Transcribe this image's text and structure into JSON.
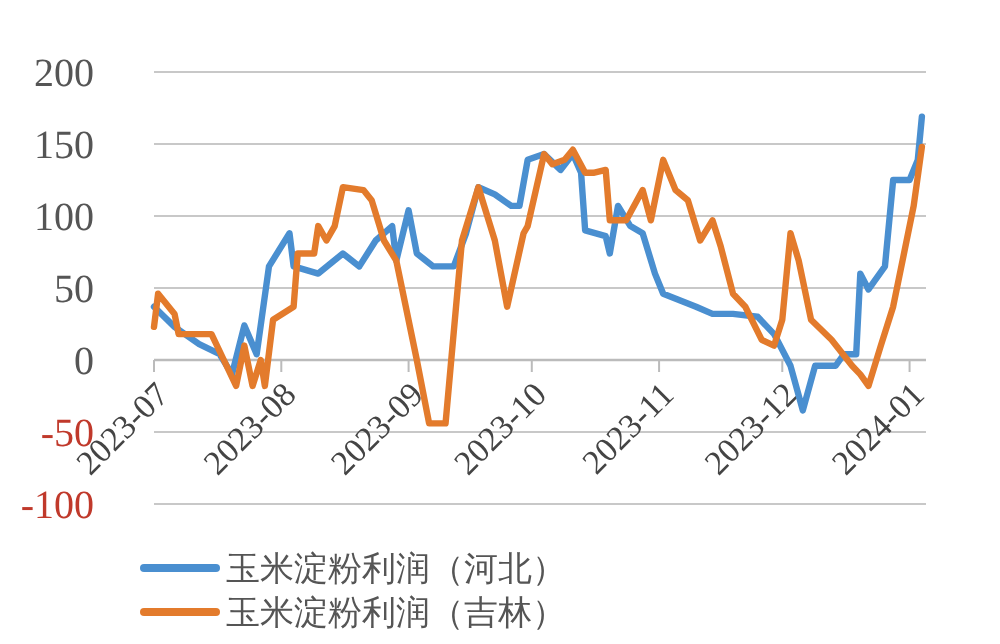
{
  "chart_data": {
    "type": "line",
    "xlim": [
      "2023-07-01",
      "2024-01-05"
    ],
    "xticks": [
      "2023-07",
      "2023-08",
      "2023-09",
      "2023-10",
      "2023-11",
      "2023-12",
      "2024-01"
    ],
    "ylim": [
      -100,
      200
    ],
    "yticks": [
      -100,
      -50,
      0,
      50,
      100,
      150,
      200
    ],
    "grid": "y",
    "legend": "bottom",
    "series": [
      {
        "name": "玉米淀粉利润（河北）",
        "color": "#4a8fd0",
        "x": [
          "2023-07-01",
          "2023-07-06",
          "2023-07-12",
          "2023-07-17",
          "2023-07-20",
          "2023-07-23",
          "2023-07-26",
          "2023-07-29",
          "2023-08-03",
          "2023-08-04",
          "2023-08-10",
          "2023-08-16",
          "2023-08-20",
          "2023-08-24",
          "2023-08-28",
          "2023-08-29",
          "2023-09-01",
          "2023-09-03",
          "2023-09-07",
          "2023-09-12",
          "2023-09-15",
          "2023-09-18",
          "2023-09-22",
          "2023-09-26",
          "2023-09-28",
          "2023-09-30",
          "2023-10-04",
          "2023-10-08",
          "2023-10-11",
          "2023-10-13",
          "2023-10-14",
          "2023-10-19",
          "2023-10-20",
          "2023-10-22",
          "2023-10-25",
          "2023-10-28",
          "2023-10-31",
          "2023-11-02",
          "2023-11-10",
          "2023-11-14",
          "2023-11-19",
          "2023-11-25",
          "2023-11-29",
          "2023-12-03",
          "2023-12-06",
          "2023-12-09",
          "2023-12-14",
          "2023-12-16",
          "2023-12-19",
          "2023-12-20",
          "2023-12-22",
          "2023-12-26",
          "2023-12-28",
          "2024-01-01",
          "2024-01-03",
          "2024-01-04"
        ],
        "values": [
          37,
          23,
          11,
          4,
          -10,
          24,
          4,
          65,
          88,
          65,
          60,
          74,
          65,
          83,
          93,
          69,
          104,
          74,
          65,
          65,
          88,
          120,
          115,
          107,
          107,
          139,
          143,
          132,
          143,
          130,
          90,
          86,
          74,
          107,
          93,
          88,
          60,
          46,
          37,
          32,
          32,
          30,
          18,
          -4,
          -35,
          -4,
          -4,
          4,
          4,
          60,
          49,
          65,
          125,
          125,
          139,
          169
        ]
      },
      {
        "name": "玉米淀粉利润（吉林）",
        "color": "#e37b2c",
        "x": [
          "2023-07-01",
          "2023-07-02",
          "2023-07-06",
          "2023-07-07",
          "2023-07-15",
          "2023-07-18",
          "2023-07-21",
          "2023-07-23",
          "2023-07-25",
          "2023-07-27",
          "2023-07-28",
          "2023-07-30",
          "2023-08-04",
          "2023-08-05",
          "2023-08-09",
          "2023-08-10",
          "2023-08-12",
          "2023-08-14",
          "2023-08-16",
          "2023-08-21",
          "2023-08-23",
          "2023-08-26",
          "2023-08-29",
          "2023-09-03",
          "2023-09-06",
          "2023-09-10",
          "2023-09-14",
          "2023-09-18",
          "2023-09-22",
          "2023-09-25",
          "2023-09-29",
          "2023-09-30",
          "2023-10-04",
          "2023-10-06",
          "2023-10-09",
          "2023-10-11",
          "2023-10-14",
          "2023-10-16",
          "2023-10-19",
          "2023-10-20",
          "2023-10-24",
          "2023-10-28",
          "2023-10-30",
          "2023-11-02",
          "2023-11-05",
          "2023-11-08",
          "2023-11-11",
          "2023-11-14",
          "2023-11-16",
          "2023-11-19",
          "2023-11-22",
          "2023-11-26",
          "2023-11-29",
          "2023-12-01",
          "2023-12-03",
          "2023-12-05",
          "2023-12-08",
          "2023-12-13",
          "2023-12-18",
          "2023-12-20",
          "2023-12-22",
          "2023-12-25",
          "2023-12-28",
          "2024-01-02",
          "2024-01-04"
        ],
        "values": [
          23,
          46,
          32,
          18,
          18,
          0,
          -18,
          10,
          -18,
          0,
          -18,
          28,
          37,
          74,
          74,
          93,
          83,
          93,
          120,
          118,
          111,
          83,
          69,
          0,
          -44,
          -44,
          83,
          120,
          83,
          37,
          88,
          93,
          143,
          136,
          139,
          146,
          130,
          130,
          132,
          97,
          97,
          118,
          97,
          139,
          118,
          111,
          83,
          97,
          79,
          46,
          37,
          14,
          10,
          28,
          88,
          69,
          28,
          14,
          -4,
          -10,
          -18,
          10,
          37,
          107,
          148
        ]
      }
    ]
  }
}
